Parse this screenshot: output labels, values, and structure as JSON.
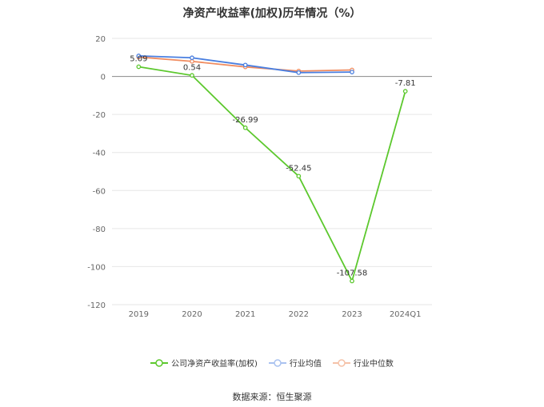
{
  "title": "净资产收益率(加权)历年情况（%）",
  "source": "数据来源：恒生聚源",
  "chart_data": {
    "type": "line",
    "title": "净资产收益率(加权)历年情况（%）",
    "categories": [
      "2019",
      "2020",
      "2021",
      "2022",
      "2023",
      "2024Q1"
    ],
    "ylim": [
      -120,
      20
    ],
    "yticks": [
      20,
      0,
      -20,
      -40,
      -60,
      -80,
      -100,
      -120
    ],
    "grid": true,
    "legend_position": "bottom",
    "series": [
      {
        "name": "公司净资产收益率(加权)",
        "color": "#5cc82d",
        "values": [
          5.09,
          0.54,
          -26.99,
          -52.45,
          -107.58,
          -7.81
        ],
        "labels": [
          "5.09",
          "0.54",
          "-26.99",
          "-52.45",
          "-107.58",
          "-7.81"
        ]
      },
      {
        "name": "行业均值",
        "color": "#4a7fe0",
        "values": [
          10.8,
          9.8,
          6.0,
          2.0,
          2.3,
          null
        ]
      },
      {
        "name": "行业中位数",
        "color": "#f08c60",
        "values": [
          10.2,
          7.9,
          5.0,
          2.8,
          3.4,
          null
        ]
      }
    ]
  }
}
